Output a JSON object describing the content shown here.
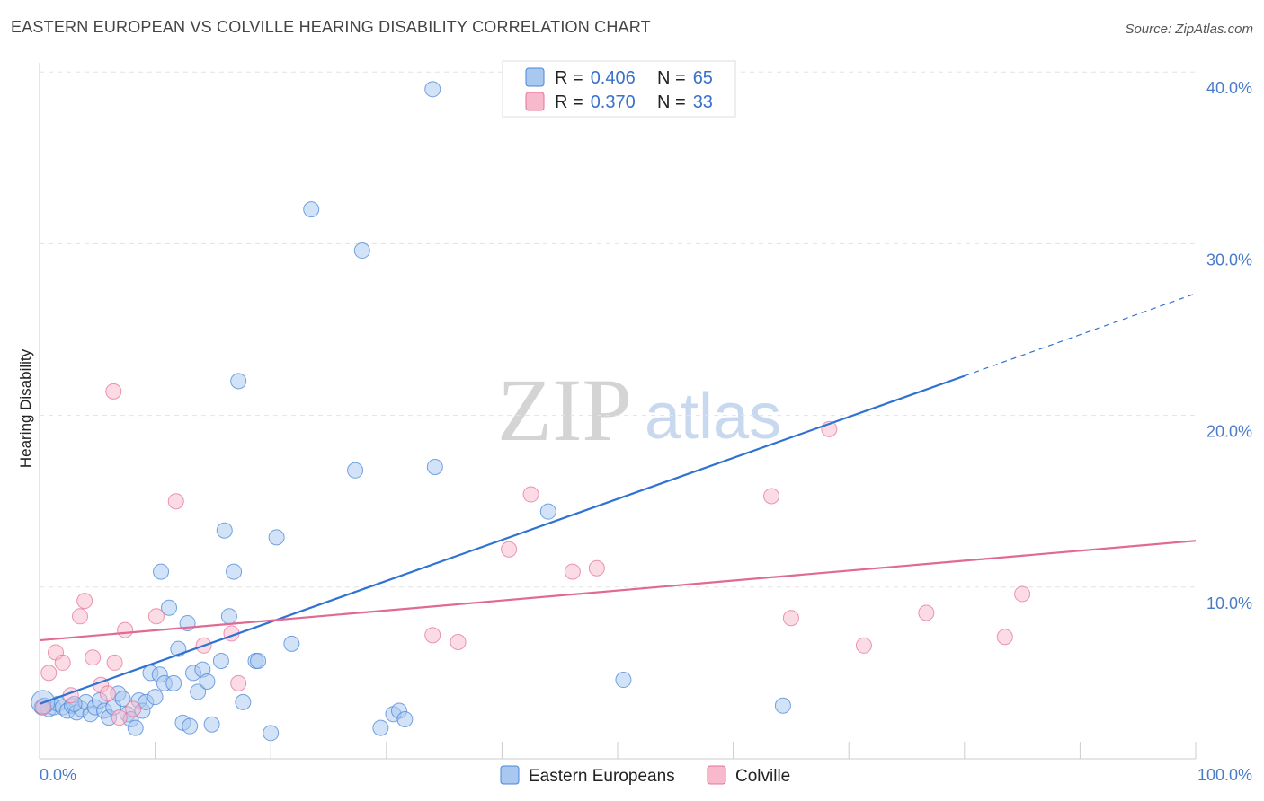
{
  "header": {
    "title": "EASTERN EUROPEAN VS COLVILLE HEARING DISABILITY CORRELATION CHART",
    "source": "Source: ZipAtlas.com"
  },
  "watermark": {
    "zip": "ZIP",
    "atlas": "atlas"
  },
  "legend_box": {
    "rows": [
      {
        "r_label": "R =",
        "r_value": "0.406",
        "n_label": "N =",
        "n_value": "65",
        "color": "#a8c8f0"
      },
      {
        "r_label": "R =",
        "r_value": "0.370",
        "n_label": "N =",
        "n_value": "33",
        "color": "#f7b9cb"
      }
    ]
  },
  "chart_data": {
    "type": "scatter",
    "title": "EASTERN EUROPEAN VS COLVILLE HEARING DISABILITY CORRELATION CHART",
    "xlabel": "",
    "ylabel": "Hearing Disability",
    "xlim": [
      0,
      100
    ],
    "ylim": [
      0,
      42
    ],
    "x_tick_labels": [
      "0.0%",
      "100.0%"
    ],
    "y_ticks": [
      10,
      20,
      30,
      40
    ],
    "y_tick_labels": [
      "10.0%",
      "20.0%",
      "30.0%",
      "40.0%"
    ],
    "grid": true,
    "legend_position": "top-center",
    "series": [
      {
        "name": "Eastern Europeans",
        "color": "#4a85d8",
        "fill": "#a8c8f0",
        "trend": {
          "x0": 0,
          "y0": 3.2,
          "x1": 80,
          "y1": 22.3,
          "dash_to_x": 100,
          "dash_to_y": 27.1
        },
        "points": [
          [
            0.4,
            3.1
          ],
          [
            0.8,
            2.9
          ],
          [
            1.2,
            3.0
          ],
          [
            1.6,
            3.2
          ],
          [
            2.0,
            3.0
          ],
          [
            2.4,
            2.8
          ],
          [
            2.8,
            3.1
          ],
          [
            3.2,
            2.7
          ],
          [
            3.6,
            2.9
          ],
          [
            4.0,
            3.3
          ],
          [
            4.4,
            2.6
          ],
          [
            4.8,
            3.0
          ],
          [
            5.2,
            3.4
          ],
          [
            5.6,
            2.8
          ],
          [
            6.0,
            2.4
          ],
          [
            6.4,
            3.0
          ],
          [
            6.8,
            3.8
          ],
          [
            7.2,
            3.5
          ],
          [
            7.6,
            2.6
          ],
          [
            7.9,
            2.3
          ],
          [
            8.3,
            1.8
          ],
          [
            8.6,
            3.4
          ],
          [
            8.9,
            2.8
          ],
          [
            9.2,
            3.3
          ],
          [
            9.6,
            5.0
          ],
          [
            10.0,
            3.6
          ],
          [
            10.4,
            4.9
          ],
          [
            10.8,
            4.4
          ],
          [
            11.2,
            8.8
          ],
          [
            11.6,
            4.4
          ],
          [
            12.0,
            6.4
          ],
          [
            12.4,
            2.1
          ],
          [
            12.8,
            7.9
          ],
          [
            13.0,
            1.9
          ],
          [
            13.3,
            5.0
          ],
          [
            13.7,
            3.9
          ],
          [
            14.1,
            5.2
          ],
          [
            14.5,
            4.5
          ],
          [
            14.9,
            2.0
          ],
          [
            15.7,
            5.7
          ],
          [
            16.0,
            13.3
          ],
          [
            16.4,
            8.3
          ],
          [
            16.8,
            10.9
          ],
          [
            17.2,
            22.0
          ],
          [
            17.6,
            3.3
          ],
          [
            18.7,
            5.7
          ],
          [
            18.9,
            5.7
          ],
          [
            20.0,
            1.5
          ],
          [
            20.5,
            12.9
          ],
          [
            21.8,
            6.7
          ],
          [
            23.5,
            32.0
          ],
          [
            27.3,
            16.8
          ],
          [
            27.9,
            29.6
          ],
          [
            29.5,
            1.8
          ],
          [
            30.6,
            2.6
          ],
          [
            31.1,
            2.8
          ],
          [
            31.6,
            2.3
          ],
          [
            34.0,
            39.0
          ],
          [
            34.2,
            17.0
          ],
          [
            44.0,
            14.4
          ],
          [
            50.5,
            4.6
          ],
          [
            64.3,
            3.1
          ],
          [
            10.5,
            10.9
          ],
          [
            3.0,
            3.2
          ],
          [
            0.2,
            3.0
          ]
        ]
      },
      {
        "name": "Colville",
        "color": "#e57399",
        "fill": "#f7b9cb",
        "trend": {
          "x0": 0,
          "y0": 6.9,
          "x1": 100,
          "y1": 12.7
        },
        "points": [
          [
            0.3,
            3.0
          ],
          [
            0.8,
            5.0
          ],
          [
            1.4,
            6.2
          ],
          [
            2.0,
            5.6
          ],
          [
            2.7,
            3.7
          ],
          [
            3.5,
            8.3
          ],
          [
            3.9,
            9.2
          ],
          [
            4.6,
            5.9
          ],
          [
            5.3,
            4.3
          ],
          [
            5.9,
            3.8
          ],
          [
            6.4,
            21.4
          ],
          [
            6.5,
            5.6
          ],
          [
            6.9,
            2.4
          ],
          [
            7.4,
            7.5
          ],
          [
            8.1,
            2.9
          ],
          [
            10.1,
            8.3
          ],
          [
            11.8,
            15.0
          ],
          [
            14.2,
            6.6
          ],
          [
            16.6,
            7.3
          ],
          [
            17.2,
            4.4
          ],
          [
            34.0,
            7.2
          ],
          [
            36.2,
            6.8
          ],
          [
            40.6,
            12.2
          ],
          [
            42.5,
            15.4
          ],
          [
            46.1,
            10.9
          ],
          [
            48.2,
            11.1
          ],
          [
            63.3,
            15.3
          ],
          [
            65.0,
            8.2
          ],
          [
            68.3,
            19.2
          ],
          [
            71.3,
            6.6
          ],
          [
            76.7,
            8.5
          ],
          [
            83.5,
            7.1
          ],
          [
            85.0,
            9.6
          ]
        ]
      }
    ]
  }
}
